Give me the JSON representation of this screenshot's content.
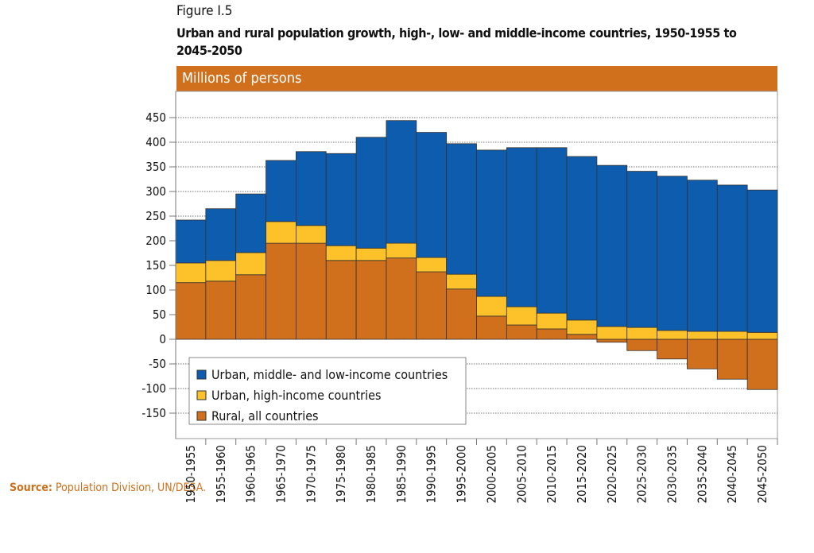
{
  "figure_label": "Figure I.5",
  "title": "Urban and rural population growth, high-, low- and middle-income countries, 1950-1955 to 2045-2050",
  "source_label": "Source:",
  "source_text": "Population Division, UN/DESA.",
  "chart_data": {
    "type": "bar",
    "stacked": true,
    "ylabel": "Millions of persons",
    "ylim": [
      -200,
      500
    ],
    "yticks": [
      450,
      400,
      350,
      300,
      250,
      200,
      150,
      100,
      50,
      0,
      -50,
      -100,
      -150
    ],
    "grid": true,
    "legend_position": "bottom-left",
    "categories": [
      "1950-1955",
      "1955-1960",
      "1960-1965",
      "1965-1970",
      "1970-1975",
      "1975-1980",
      "1980-1985",
      "1985-1990",
      "1990-1995",
      "1995-2000",
      "2000-2005",
      "2005-2010",
      "2010-2015",
      "2015-2020",
      "2020-2025",
      "2025-2030",
      "2030-2035",
      "2035-2040",
      "2040-2045",
      "2045-2050"
    ],
    "series": [
      {
        "name": "Rural, all countries",
        "color": "#d0701c",
        "values": [
          115,
          118,
          131,
          195,
          195,
          160,
          160,
          165,
          137,
          102,
          47,
          29,
          21,
          10,
          -6,
          -23,
          -40,
          -60,
          -81,
          -102
        ]
      },
      {
        "name": "Urban, high-income countries",
        "color": "#fdc12a",
        "values": [
          40,
          42,
          45,
          44,
          36,
          30,
          25,
          30,
          29,
          30,
          40,
          37,
          32,
          29,
          26,
          24,
          18,
          16,
          16,
          14
        ]
      },
      {
        "name": "Urban, middle- and low-income countries",
        "color": "#0e5cad",
        "values": [
          87,
          105,
          119,
          124,
          150,
          187,
          225,
          249,
          254,
          265,
          297,
          323,
          336,
          332,
          327,
          317,
          313,
          307,
          297,
          289
        ]
      }
    ]
  }
}
